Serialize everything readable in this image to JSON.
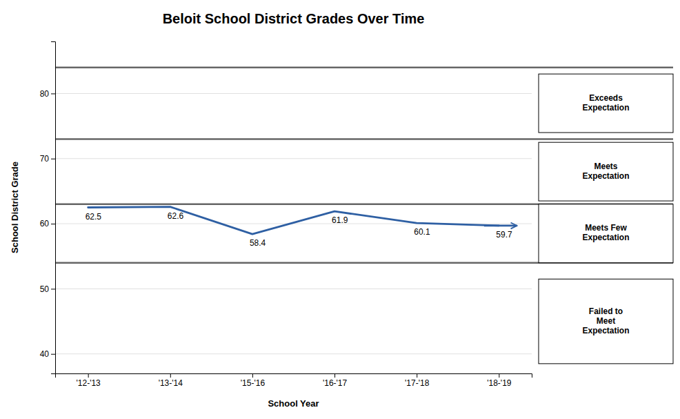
{
  "chart_data": {
    "type": "line",
    "title": "Beloit School District Grades Over Time",
    "xlabel": "School Year",
    "ylabel": "School District Grade",
    "categories": [
      "'12-'13",
      "'13-'14",
      "'15-'16",
      "'16-'17",
      "'17-'18",
      "'18-'19"
    ],
    "values": [
      62.5,
      62.6,
      58.4,
      61.9,
      60.1,
      59.7
    ],
    "color": "#2E5FA3",
    "ylim": [
      37,
      88
    ],
    "yticks": [
      40,
      50,
      60,
      70,
      80
    ],
    "grid": true,
    "data_labels": true,
    "hlines": [
      84,
      73,
      63,
      54
    ],
    "bands": [
      {
        "label": "Exceeds\nExpectation",
        "y_center": 78.5,
        "height": 9
      },
      {
        "label": "Meets\nExpectation",
        "y_center": 68.0,
        "height": 9
      },
      {
        "label": "Meets Few\nExpectation",
        "y_center": 58.5,
        "height": 9
      },
      {
        "label": "Failed to\nMeet\nExpectation",
        "y_center": 45.0,
        "height": 13
      }
    ]
  }
}
